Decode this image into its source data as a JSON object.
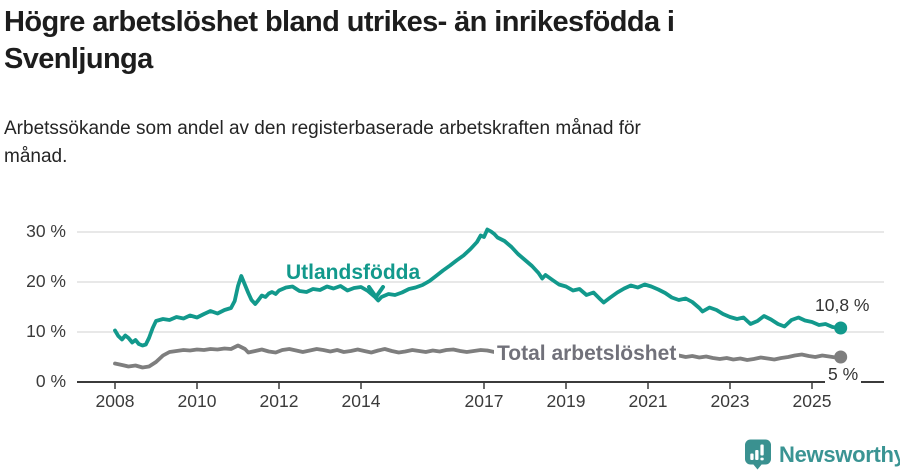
{
  "header": {
    "title_line1": "Högre arbetslöshet bland utrikes- än inrikesfödda i",
    "title_line2": "Svenljunga",
    "subtitle_line1": "Arbetssökande som andel av den registerbaserade arbetskraften månad för",
    "subtitle_line2": "månad."
  },
  "chart_data": {
    "type": "line",
    "title": "Högre arbetslöshet bland utrikes- än inrikesfödda i Svenljunga",
    "subtitle": "Arbetssökande som andel av den registerbaserade arbetskraften månad för månad.",
    "grid": true,
    "legend_position": "inline-annotations",
    "x_axis": {
      "range": [
        2008,
        2026.1
      ],
      "ticks": [
        2008,
        2010,
        2012,
        2014,
        2017,
        2019,
        2021,
        2023,
        2025
      ],
      "tick_labels": [
        "2008",
        "2010",
        "2012",
        "2014",
        "2017",
        "2019",
        "2021",
        "2023",
        "2025"
      ]
    },
    "y_axis": {
      "range": [
        0,
        32
      ],
      "unit": "%",
      "ticks": [
        0,
        10,
        20,
        30
      ],
      "tick_labels": [
        "0 %",
        "10 %",
        "20 %",
        "30 %"
      ]
    },
    "colors": {
      "utlandsfodda": "#12998c",
      "total": "#7e7e7e",
      "grid": "#d9d9d9",
      "axis": "#3b3b3b"
    },
    "series": [
      {
        "name": "Utlandsfödda",
        "color": "#12998c",
        "end_label": "10,8 %",
        "end_value": 10.8,
        "points": [
          [
            2008.0,
            10.3
          ],
          [
            2008.08,
            9.2
          ],
          [
            2008.17,
            8.5
          ],
          [
            2008.25,
            9.3
          ],
          [
            2008.33,
            8.8
          ],
          [
            2008.42,
            7.9
          ],
          [
            2008.5,
            8.4
          ],
          [
            2008.58,
            7.6
          ],
          [
            2008.67,
            7.3
          ],
          [
            2008.75,
            7.5
          ],
          [
            2008.83,
            8.8
          ],
          [
            2008.92,
            10.8
          ],
          [
            2009.0,
            12.2
          ],
          [
            2009.17,
            12.6
          ],
          [
            2009.33,
            12.4
          ],
          [
            2009.5,
            13.0
          ],
          [
            2009.67,
            12.7
          ],
          [
            2009.83,
            13.3
          ],
          [
            2010.0,
            12.9
          ],
          [
            2010.17,
            13.6
          ],
          [
            2010.33,
            14.2
          ],
          [
            2010.5,
            13.7
          ],
          [
            2010.67,
            14.4
          ],
          [
            2010.83,
            14.8
          ],
          [
            2010.92,
            16.2
          ],
          [
            2011.0,
            19.2
          ],
          [
            2011.08,
            21.2
          ],
          [
            2011.17,
            19.4
          ],
          [
            2011.25,
            17.8
          ],
          [
            2011.33,
            16.4
          ],
          [
            2011.42,
            15.6
          ],
          [
            2011.5,
            16.4
          ],
          [
            2011.58,
            17.3
          ],
          [
            2011.67,
            17.0
          ],
          [
            2011.75,
            17.7
          ],
          [
            2011.83,
            18.0
          ],
          [
            2011.92,
            17.6
          ],
          [
            2012.0,
            18.3
          ],
          [
            2012.17,
            18.9
          ],
          [
            2012.33,
            19.1
          ],
          [
            2012.5,
            18.2
          ],
          [
            2012.67,
            18.0
          ],
          [
            2012.83,
            18.6
          ],
          [
            2013.0,
            18.4
          ],
          [
            2013.17,
            19.1
          ],
          [
            2013.33,
            18.7
          ],
          [
            2013.5,
            19.2
          ],
          [
            2013.67,
            18.3
          ],
          [
            2013.83,
            18.8
          ],
          [
            2014.0,
            19.0
          ],
          [
            2014.17,
            18.2
          ],
          [
            2014.33,
            17.1
          ],
          [
            2014.42,
            16.3
          ],
          [
            2014.5,
            17.0
          ],
          [
            2014.67,
            17.6
          ],
          [
            2014.83,
            17.4
          ],
          [
            2015.0,
            17.9
          ],
          [
            2015.17,
            18.6
          ],
          [
            2015.33,
            18.9
          ],
          [
            2015.5,
            19.4
          ],
          [
            2015.67,
            20.2
          ],
          [
            2015.83,
            21.2
          ],
          [
            2016.0,
            22.3
          ],
          [
            2016.17,
            23.3
          ],
          [
            2016.33,
            24.3
          ],
          [
            2016.5,
            25.3
          ],
          [
            2016.67,
            26.6
          ],
          [
            2016.83,
            28.0
          ],
          [
            2016.92,
            29.3
          ],
          [
            2017.0,
            29.0
          ],
          [
            2017.08,
            30.5
          ],
          [
            2017.17,
            30.1
          ],
          [
            2017.25,
            29.6
          ],
          [
            2017.33,
            28.9
          ],
          [
            2017.5,
            28.2
          ],
          [
            2017.67,
            27.0
          ],
          [
            2017.83,
            25.6
          ],
          [
            2018.0,
            24.4
          ],
          [
            2018.17,
            23.2
          ],
          [
            2018.33,
            21.8
          ],
          [
            2018.42,
            20.7
          ],
          [
            2018.5,
            21.4
          ],
          [
            2018.67,
            20.4
          ],
          [
            2018.83,
            19.5
          ],
          [
            2019.0,
            19.1
          ],
          [
            2019.17,
            18.3
          ],
          [
            2019.33,
            18.6
          ],
          [
            2019.5,
            17.4
          ],
          [
            2019.67,
            17.9
          ],
          [
            2019.83,
            16.6
          ],
          [
            2019.92,
            15.9
          ],
          [
            2020.08,
            16.9
          ],
          [
            2020.25,
            17.9
          ],
          [
            2020.42,
            18.7
          ],
          [
            2020.58,
            19.3
          ],
          [
            2020.75,
            18.9
          ],
          [
            2020.92,
            19.5
          ],
          [
            2021.08,
            19.1
          ],
          [
            2021.25,
            18.5
          ],
          [
            2021.42,
            17.8
          ],
          [
            2021.58,
            16.9
          ],
          [
            2021.75,
            16.4
          ],
          [
            2021.92,
            16.7
          ],
          [
            2022.08,
            16.0
          ],
          [
            2022.25,
            14.8
          ],
          [
            2022.33,
            14.1
          ],
          [
            2022.5,
            14.9
          ],
          [
            2022.67,
            14.4
          ],
          [
            2022.83,
            13.6
          ],
          [
            2023.0,
            13.0
          ],
          [
            2023.17,
            12.6
          ],
          [
            2023.33,
            12.9
          ],
          [
            2023.5,
            11.6
          ],
          [
            2023.67,
            12.2
          ],
          [
            2023.83,
            13.2
          ],
          [
            2024.0,
            12.5
          ],
          [
            2024.17,
            11.6
          ],
          [
            2024.33,
            11.1
          ],
          [
            2024.5,
            12.4
          ],
          [
            2024.67,
            12.9
          ],
          [
            2024.83,
            12.3
          ],
          [
            2025.0,
            12.0
          ],
          [
            2025.17,
            11.4
          ],
          [
            2025.33,
            11.6
          ],
          [
            2025.5,
            11.0
          ],
          [
            2025.58,
            10.9
          ],
          [
            2025.7,
            10.8
          ]
        ]
      },
      {
        "name": "Total arbetslöshet",
        "color": "#7e7e7e",
        "end_label": "5 %",
        "end_value": 5.0,
        "points": [
          [
            2008.0,
            3.7
          ],
          [
            2008.17,
            3.4
          ],
          [
            2008.33,
            3.1
          ],
          [
            2008.5,
            3.3
          ],
          [
            2008.67,
            2.9
          ],
          [
            2008.83,
            3.1
          ],
          [
            2009.0,
            4.0
          ],
          [
            2009.17,
            5.3
          ],
          [
            2009.33,
            6.0
          ],
          [
            2009.5,
            6.2
          ],
          [
            2009.67,
            6.4
          ],
          [
            2009.83,
            6.3
          ],
          [
            2010.0,
            6.5
          ],
          [
            2010.17,
            6.4
          ],
          [
            2010.33,
            6.6
          ],
          [
            2010.5,
            6.5
          ],
          [
            2010.67,
            6.7
          ],
          [
            2010.83,
            6.6
          ],
          [
            2011.0,
            7.3
          ],
          [
            2011.17,
            6.6
          ],
          [
            2011.25,
            5.9
          ],
          [
            2011.42,
            6.2
          ],
          [
            2011.58,
            6.5
          ],
          [
            2011.75,
            6.1
          ],
          [
            2011.92,
            5.9
          ],
          [
            2012.08,
            6.4
          ],
          [
            2012.25,
            6.6
          ],
          [
            2012.42,
            6.3
          ],
          [
            2012.58,
            6.0
          ],
          [
            2012.75,
            6.3
          ],
          [
            2012.92,
            6.6
          ],
          [
            2013.08,
            6.4
          ],
          [
            2013.25,
            6.1
          ],
          [
            2013.42,
            6.4
          ],
          [
            2013.58,
            6.0
          ],
          [
            2013.75,
            6.2
          ],
          [
            2013.92,
            6.5
          ],
          [
            2014.08,
            6.2
          ],
          [
            2014.25,
            5.9
          ],
          [
            2014.42,
            6.3
          ],
          [
            2014.58,
            6.6
          ],
          [
            2014.75,
            6.2
          ],
          [
            2014.92,
            5.9
          ],
          [
            2015.08,
            6.1
          ],
          [
            2015.25,
            6.4
          ],
          [
            2015.42,
            6.2
          ],
          [
            2015.58,
            6.0
          ],
          [
            2015.75,
            6.3
          ],
          [
            2015.92,
            6.1
          ],
          [
            2016.08,
            6.4
          ],
          [
            2016.25,
            6.5
          ],
          [
            2016.42,
            6.2
          ],
          [
            2016.58,
            6.0
          ],
          [
            2016.75,
            6.2
          ],
          [
            2016.92,
            6.4
          ],
          [
            2017.08,
            6.3
          ],
          [
            2017.25,
            6.0
          ],
          [
            2017.42,
            5.8
          ],
          [
            2017.58,
            6.0
          ],
          [
            2017.75,
            5.7
          ],
          [
            2017.92,
            5.5
          ],
          [
            2018.08,
            5.7
          ],
          [
            2018.25,
            5.4
          ],
          [
            2018.42,
            5.6
          ],
          [
            2018.58,
            5.3
          ],
          [
            2018.75,
            5.5
          ],
          [
            2018.92,
            5.2
          ],
          [
            2019.08,
            5.4
          ],
          [
            2019.25,
            5.6
          ],
          [
            2019.42,
            5.3
          ],
          [
            2019.58,
            5.5
          ],
          [
            2019.75,
            5.2
          ],
          [
            2019.92,
            5.0
          ],
          [
            2020.08,
            5.4
          ],
          [
            2020.25,
            5.8
          ],
          [
            2020.42,
            6.1
          ],
          [
            2020.58,
            5.9
          ],
          [
            2020.75,
            6.0
          ],
          [
            2020.92,
            5.8
          ],
          [
            2021.08,
            6.0
          ],
          [
            2021.25,
            5.7
          ],
          [
            2021.42,
            5.4
          ],
          [
            2021.58,
            5.1
          ],
          [
            2021.75,
            5.3
          ],
          [
            2021.92,
            5.0
          ],
          [
            2022.08,
            5.2
          ],
          [
            2022.25,
            4.9
          ],
          [
            2022.42,
            5.1
          ],
          [
            2022.58,
            4.8
          ],
          [
            2022.75,
            4.6
          ],
          [
            2022.92,
            4.8
          ],
          [
            2023.08,
            4.5
          ],
          [
            2023.25,
            4.7
          ],
          [
            2023.42,
            4.4
          ],
          [
            2023.58,
            4.6
          ],
          [
            2023.75,
            4.9
          ],
          [
            2023.92,
            4.7
          ],
          [
            2024.08,
            4.5
          ],
          [
            2024.25,
            4.8
          ],
          [
            2024.42,
            5.0
          ],
          [
            2024.58,
            5.3
          ],
          [
            2024.75,
            5.5
          ],
          [
            2024.92,
            5.2
          ],
          [
            2025.08,
            5.0
          ],
          [
            2025.25,
            5.3
          ],
          [
            2025.42,
            5.1
          ],
          [
            2025.58,
            4.9
          ],
          [
            2025.7,
            5.0
          ]
        ]
      }
    ]
  },
  "footer": {
    "brand": "Newsworthy",
    "brand_color": "#3a9493"
  }
}
